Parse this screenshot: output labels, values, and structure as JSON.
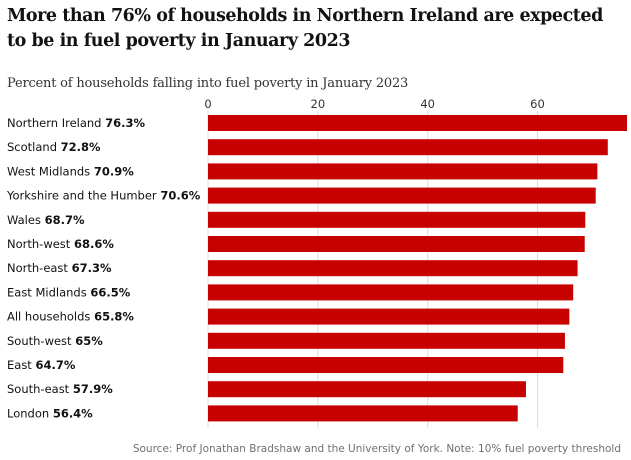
{
  "title": "More than 76% of households in Northern Ireland are expected to be in fuel poverty in January 2023",
  "subtitle": "Percent of households falling into fuel poverty in January 2023",
  "source": "Source: Prof Jonathan Bradshaw and the University of York. Note: 10% fuel poverty threshold",
  "colors": {
    "bar": "#c70000",
    "grid": "#dcdcdc",
    "text": "#121212"
  },
  "chart_data": {
    "type": "bar",
    "orientation": "horizontal",
    "xlim": [
      0,
      76.3
    ],
    "xticks": [
      0,
      20,
      40,
      60
    ],
    "xtick_labels": [
      "0",
      "20",
      "40",
      "60"
    ],
    "axis_position": "top",
    "grid": true,
    "categories": [
      "Northern Ireland",
      "Scotland",
      "West Midlands",
      "Yorkshire and the Humber",
      "Wales",
      "North-west",
      "North-east",
      "East Midlands",
      "All households",
      "South-west",
      "East",
      "South-east",
      "London"
    ],
    "values": [
      76.3,
      72.8,
      70.9,
      70.6,
      68.7,
      68.6,
      67.3,
      66.5,
      65.8,
      65,
      64.7,
      57.9,
      56.4
    ],
    "value_labels": [
      "76.3%",
      "72.8%",
      "70.9%",
      "70.6%",
      "68.7%",
      "68.6%",
      "67.3%",
      "66.5%",
      "65.8%",
      "65%",
      "64.7%",
      "57.9%",
      "56.4%"
    ]
  }
}
